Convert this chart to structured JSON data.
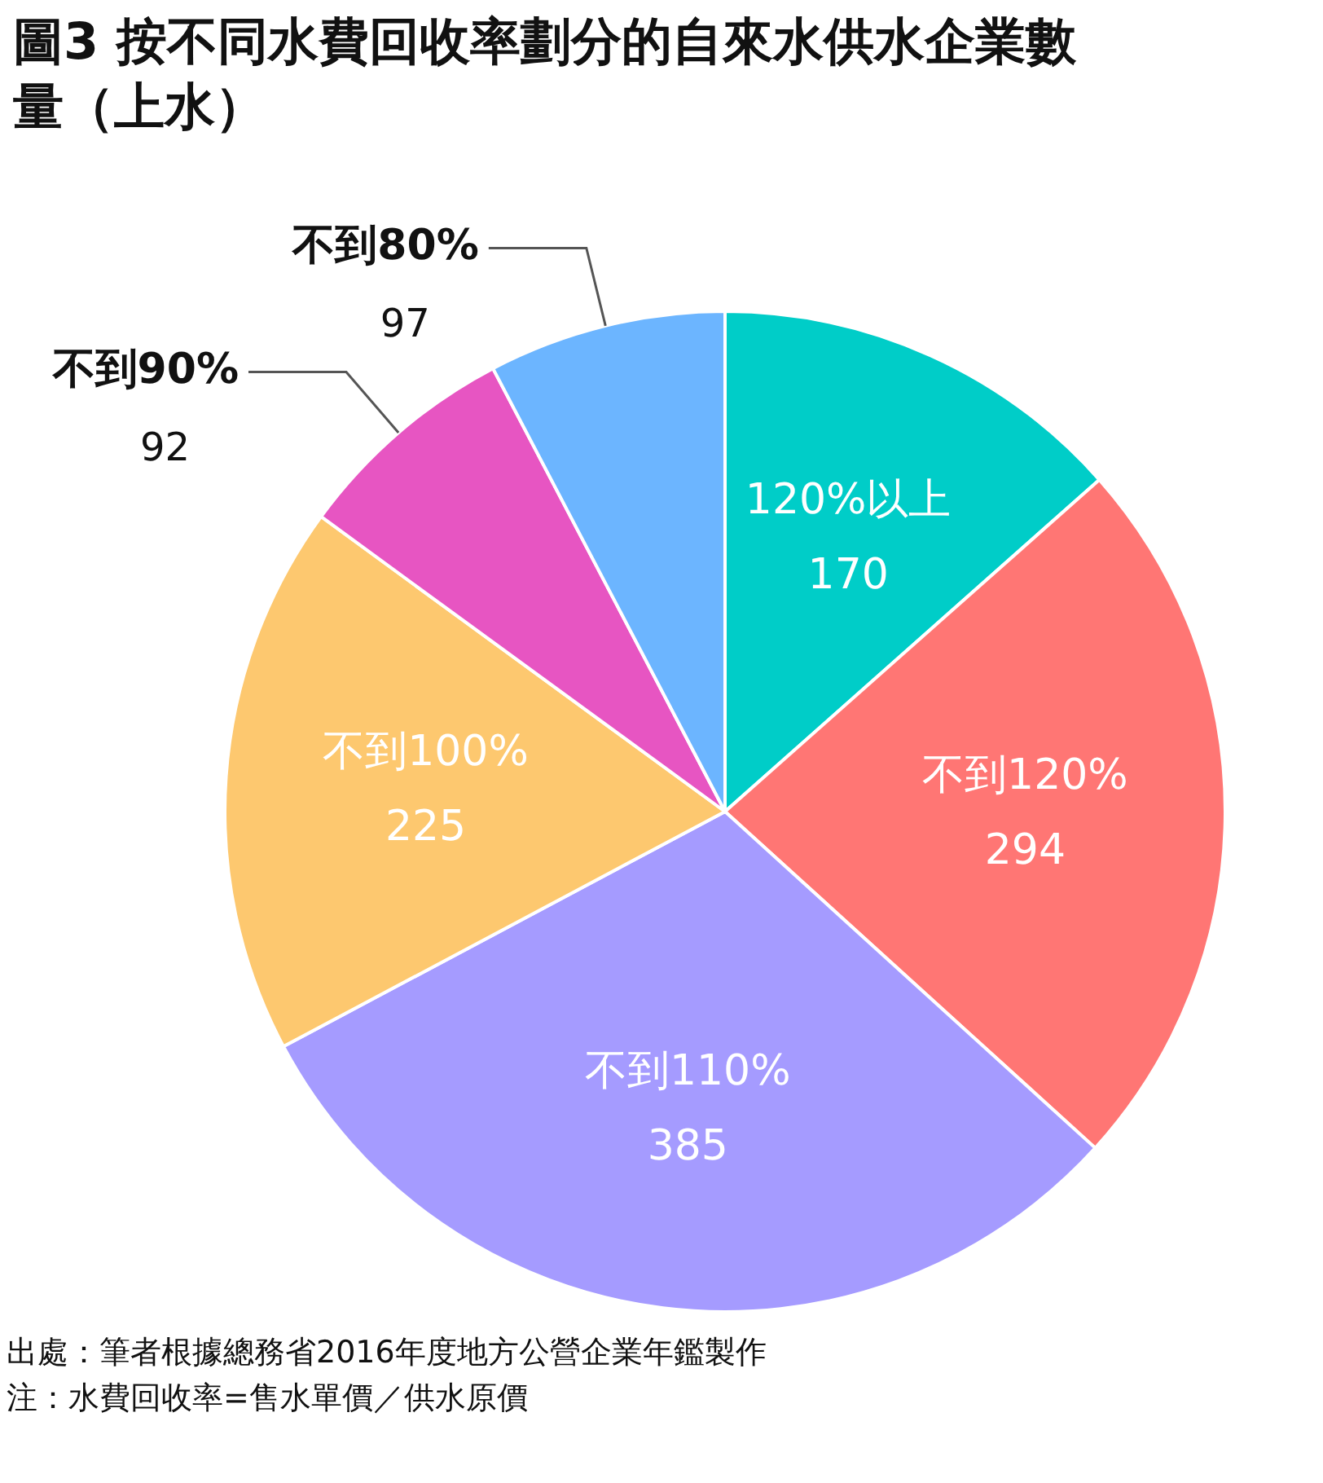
{
  "chart_data": {
    "type": "pie",
    "title": "圖3 按不同水費回收率劃分的自來水供水企業數量（上水）",
    "categories": [
      "120%以上",
      "不到120%",
      "不到110%",
      "不到100%",
      "不到90%",
      "不到80%"
    ],
    "values": [
      170,
      294,
      385,
      225,
      92,
      97
    ],
    "colors": [
      "#00cdc8",
      "#ff7674",
      "#a59bff",
      "#fdc86f",
      "#e755c2",
      "#6cb5ff"
    ],
    "data_labels": true,
    "legend": false,
    "annotations": [
      "出處：筆者根據總務省2016年度地方公營企業年鑑製作",
      "注：水費回收率=售水單價／供水原價"
    ]
  }
}
